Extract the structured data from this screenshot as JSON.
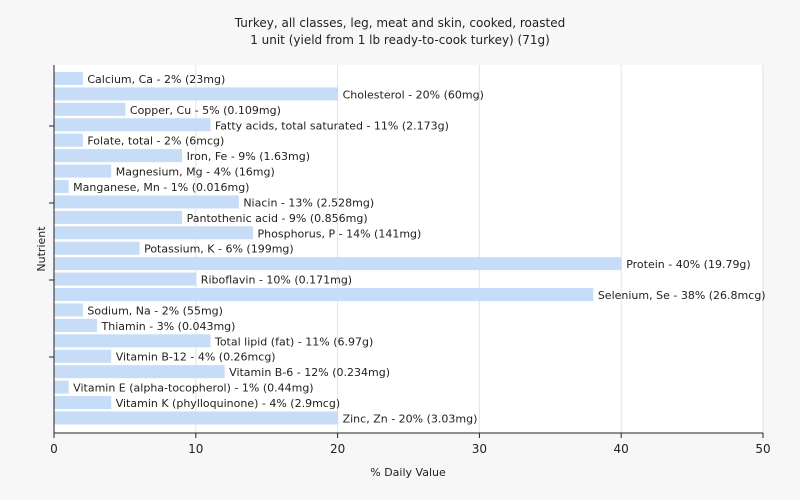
{
  "chart_data": {
    "type": "bar",
    "orientation": "horizontal",
    "title": "Turkey, all classes, leg, meat and skin, cooked, roasted",
    "subtitle": "1 unit (yield from 1 lb ready-to-cook turkey) (71g)",
    "xlabel": "% Daily Value",
    "ylabel": "Nutrient",
    "xlim": [
      0,
      50
    ],
    "xticks": [
      0,
      10,
      20,
      30,
      40,
      50
    ],
    "grid": true,
    "legend": "none",
    "bar_color": "#c6dcf7",
    "categories": [
      "Calcium, Ca",
      "Cholesterol",
      "Copper, Cu",
      "Fatty acids, total saturated",
      "Folate, total",
      "Iron, Fe",
      "Magnesium, Mg",
      "Manganese, Mn",
      "Niacin",
      "Pantothenic acid",
      "Phosphorus, P",
      "Potassium, K",
      "Protein",
      "Riboflavin",
      "Selenium, Se",
      "Sodium, Na",
      "Thiamin",
      "Total lipid (fat)",
      "Vitamin B-12",
      "Vitamin B-6",
      "Vitamin E (alpha-tocopherol)",
      "Vitamin K (phylloquinone)",
      "Zinc, Zn"
    ],
    "values": [
      2,
      20,
      5,
      11,
      2,
      9,
      4,
      1,
      13,
      9,
      14,
      6,
      40,
      10,
      38,
      2,
      3,
      11,
      4,
      12,
      1,
      4,
      20
    ],
    "labels": [
      "Calcium, Ca - 2% (23mg)",
      "Cholesterol - 20% (60mg)",
      "Copper, Cu - 5% (0.109mg)",
      "Fatty acids, total saturated - 11% (2.173g)",
      "Folate, total - 2% (6mcg)",
      "Iron, Fe - 9% (1.63mg)",
      "Magnesium, Mg - 4% (16mg)",
      "Manganese, Mn - 1% (0.016mg)",
      "Niacin - 13% (2.528mg)",
      "Pantothenic acid - 9% (0.856mg)",
      "Phosphorus, P - 14% (141mg)",
      "Potassium, K - 6% (199mg)",
      "Protein - 40% (19.79g)",
      "Riboflavin - 10% (0.171mg)",
      "Selenium, Se - 38% (26.8mcg)",
      "Sodium, Na - 2% (55mg)",
      "Thiamin - 3% (0.043mg)",
      "Total lipid (fat) - 11% (6.97g)",
      "Vitamin B-12 - 4% (0.26mcg)",
      "Vitamin B-6 - 12% (0.234mg)",
      "Vitamin E (alpha-tocopherol) - 1% (0.44mg)",
      "Vitamin K (phylloquinone) - 4% (2.9mcg)",
      "Zinc, Zn - 20% (3.03mg)"
    ]
  }
}
